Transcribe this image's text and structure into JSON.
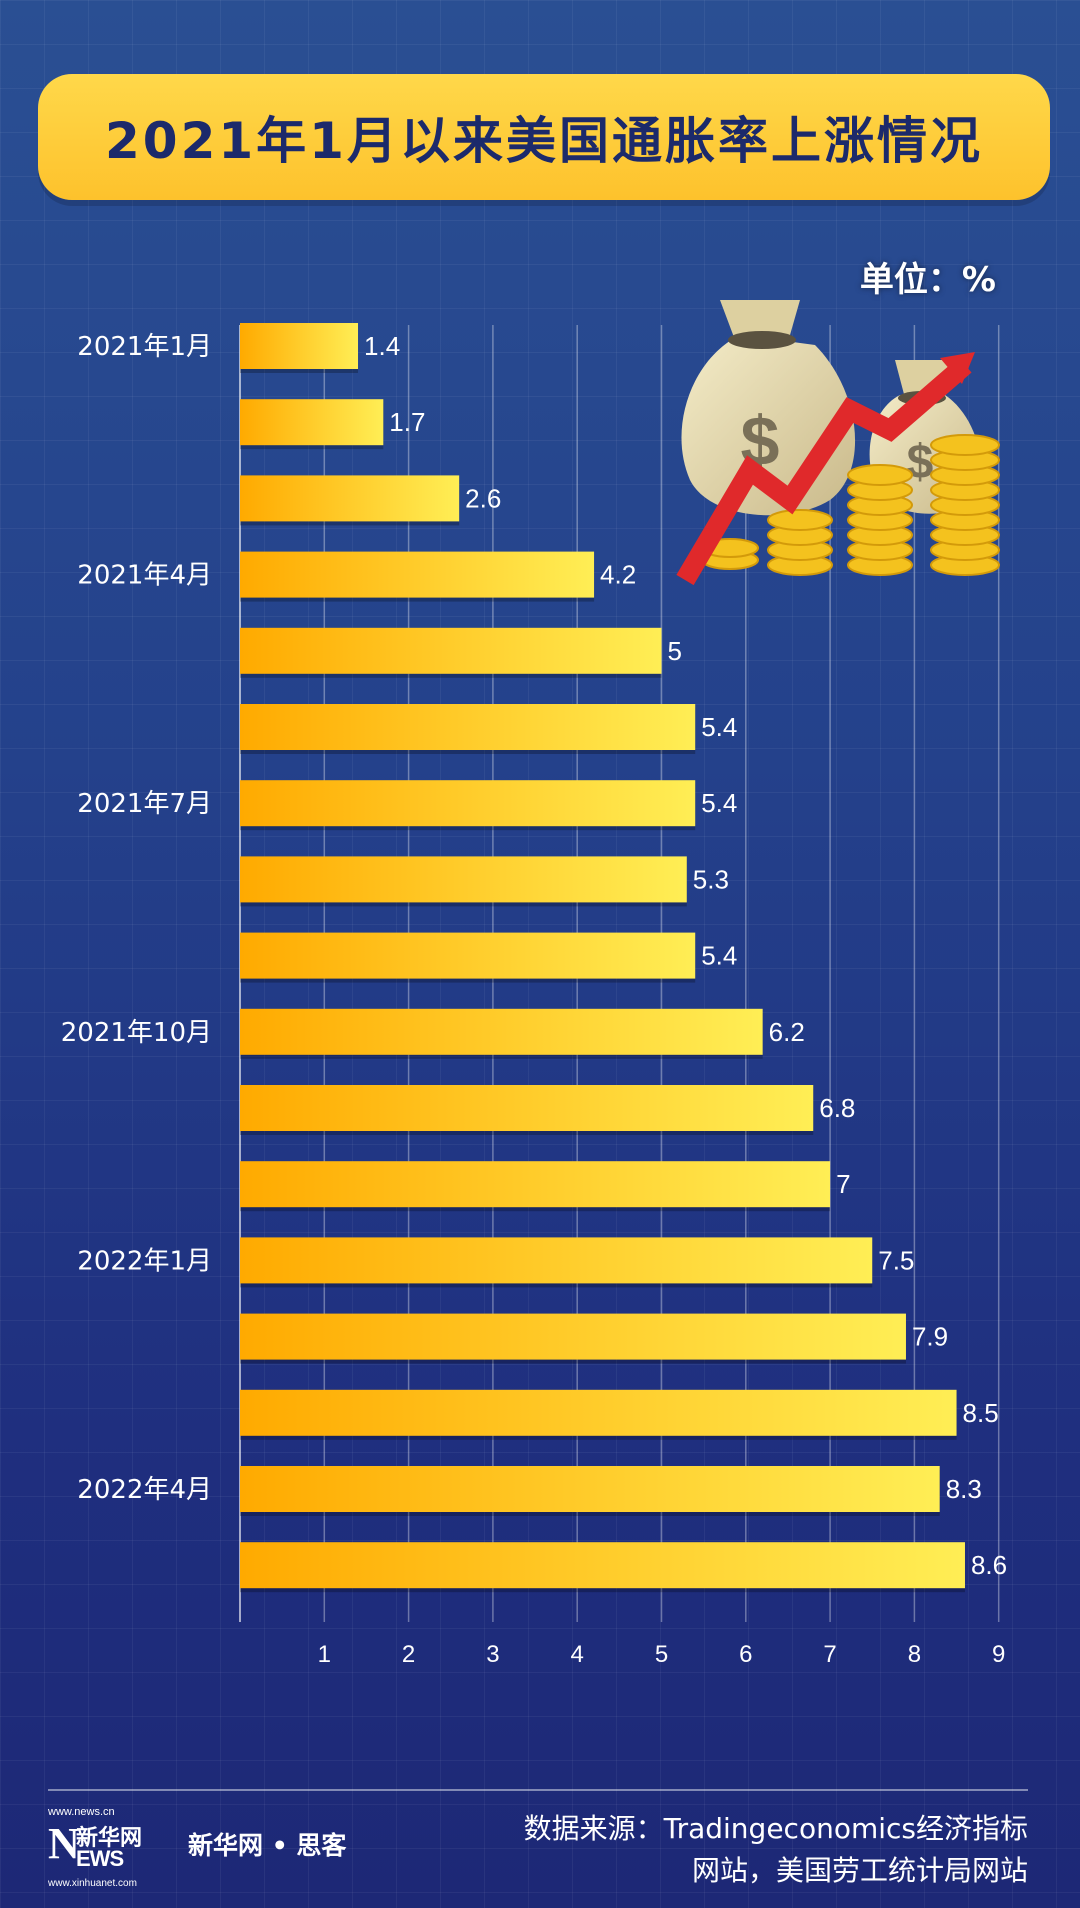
{
  "title": "2021年1月以来美国通胀率上涨情况",
  "unit": "单位：%",
  "chart_data": {
    "type": "bar",
    "orientation": "horizontal",
    "categories": [
      "2021年1月",
      "",
      "",
      "2021年4月",
      "",
      "",
      "2021年7月",
      "",
      "",
      "2021年10月",
      "",
      "",
      "2022年1月",
      "",
      "",
      "2022年4月",
      ""
    ],
    "values": [
      1.4,
      1.7,
      2.6,
      4.2,
      5,
      5.4,
      5.4,
      5.3,
      5.4,
      6.2,
      6.8,
      7,
      7.5,
      7.9,
      8.5,
      8.3,
      8.6
    ],
    "value_labels": [
      "1.4",
      "1.7",
      "2.6",
      "4.2",
      "5",
      "5.4",
      "5.4",
      "5.3",
      "5.4",
      "6.2",
      "6.8",
      "7",
      "7.5",
      "7.9",
      "8.5",
      "8.3",
      "8.6"
    ],
    "xlim": [
      0,
      9
    ],
    "x_ticks": [
      "1",
      "2",
      "3",
      "4",
      "5",
      "6",
      "7",
      "8",
      "9"
    ],
    "grid": true,
    "bar_color_start": "#ffaa00",
    "bar_color_end": "#ffee55"
  },
  "footer": {
    "logo_url_top": "www.news.cn",
    "logo_n": "N",
    "logo_cn": "新华网",
    "logo_ews": "EWS",
    "logo_url_bottom": "www.xinhuanet.com",
    "brand": "新华网 • 思客",
    "source_line1": "数据来源：Tradingeconomics经济指标",
    "source_line2": "网站，美国劳工统计局网站"
  }
}
